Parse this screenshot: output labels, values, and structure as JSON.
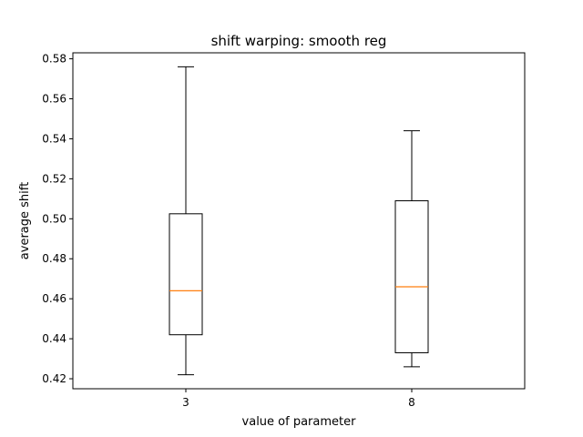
{
  "chart_data": {
    "type": "box",
    "title": "shift warping: smooth reg",
    "xlabel": "value of parameter",
    "ylabel": "average shift",
    "categories": [
      "3",
      "8"
    ],
    "ylim": [
      0.415,
      0.583
    ],
    "yticks": [
      0.42,
      0.44,
      0.46,
      0.48,
      0.5,
      0.52,
      0.54,
      0.56,
      0.58
    ],
    "ytick_labels": [
      "0.42",
      "0.44",
      "0.46",
      "0.48",
      "0.50",
      "0.52",
      "0.54",
      "0.56",
      "0.58"
    ],
    "boxes": [
      {
        "category": "3",
        "whisker_low": 0.422,
        "q1": 0.442,
        "median": 0.464,
        "q3": 0.5025,
        "whisker_high": 0.576
      },
      {
        "category": "8",
        "whisker_low": 0.426,
        "q1": 0.433,
        "median": 0.466,
        "q3": 0.509,
        "whisker_high": 0.544
      }
    ],
    "grid": false,
    "colors": {
      "box": "#000000",
      "median": "#ff7f0e"
    }
  }
}
